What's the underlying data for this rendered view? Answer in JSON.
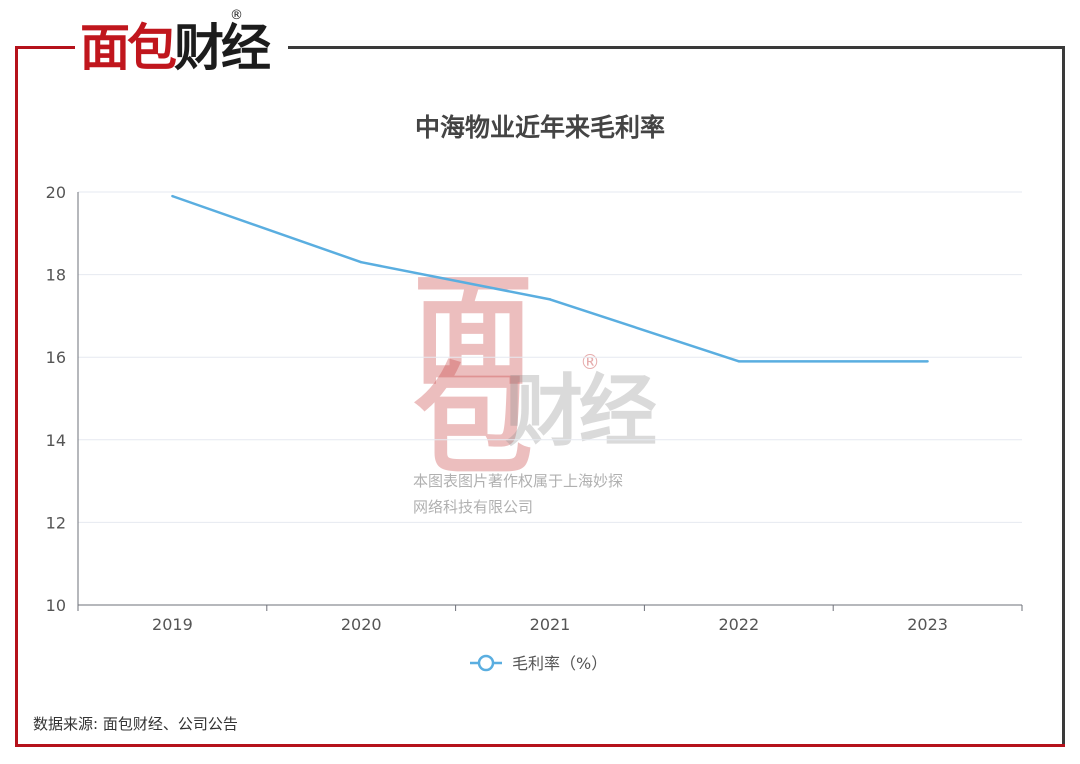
{
  "logo": {
    "part1": "面包",
    "part2": "财经",
    "registered": "®"
  },
  "watermark": {
    "mark1": "面",
    "mark2": "包",
    "mark3": "财经",
    "registered": "®",
    "line1": "本图表图片著作权属于上海妙探",
    "line2": "网络科技有限公司"
  },
  "source_note": "数据来源: 面包财经、公司公告",
  "colors": {
    "frame_accent": "#b5121b",
    "frame_dark": "#3a3a3a",
    "line": "#5aaee0",
    "grid": "#e6e9f0"
  },
  "chart_data": {
    "type": "line",
    "title": "中海物业近年来毛利率",
    "categories": [
      "2019",
      "2020",
      "2021",
      "2022",
      "2023"
    ],
    "series": [
      {
        "name": "毛利率（%）",
        "values": [
          19.9,
          18.3,
          17.4,
          15.9,
          15.9
        ]
      }
    ],
    "yticks": [
      "20",
      "18",
      "16",
      "14",
      "12",
      "10"
    ],
    "ylim": [
      10,
      20
    ],
    "grid": true,
    "legend_position": "bottom-center"
  }
}
